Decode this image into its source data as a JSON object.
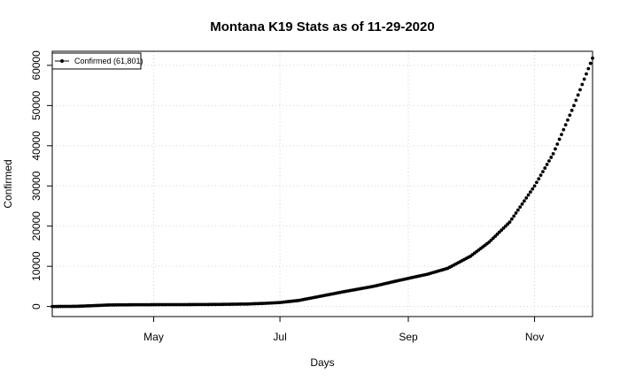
{
  "chart_data": {
    "type": "scatter",
    "title": "Montana K19 Stats as of 11-29-2020",
    "xlabel": "Days",
    "ylabel": "Confirmed",
    "x_start": "2020-03-13",
    "x_end": "2020-11-29",
    "xlim": [
      "2020-03-13",
      "2020-11-29"
    ],
    "ylim": [
      -2500,
      63500
    ],
    "x_ticks": [
      {
        "date": "2020-05-01",
        "label": "May"
      },
      {
        "date": "2020-07-01",
        "label": "Jul"
      },
      {
        "date": "2020-09-01",
        "label": "Sep"
      },
      {
        "date": "2020-11-01",
        "label": "Nov"
      }
    ],
    "y_ticks": [
      0,
      10000,
      20000,
      30000,
      40000,
      50000,
      60000
    ],
    "grid": true,
    "legend": {
      "position": "top-left",
      "entries": [
        "Confirmed (61,801)"
      ]
    },
    "series": [
      {
        "name": "Confirmed (61,801)",
        "marker": "filled-circle",
        "color": "#000000",
        "points": [
          [
            "2020-03-13",
            0
          ],
          [
            "2020-03-25",
            50
          ],
          [
            "2020-04-01",
            200
          ],
          [
            "2020-04-10",
            390
          ],
          [
            "2020-04-20",
            430
          ],
          [
            "2020-05-01",
            455
          ],
          [
            "2020-05-15",
            470
          ],
          [
            "2020-06-01",
            520
          ],
          [
            "2020-06-15",
            620
          ],
          [
            "2020-06-25",
            820
          ],
          [
            "2020-07-01",
            1000
          ],
          [
            "2020-07-10",
            1500
          ],
          [
            "2020-07-20",
            2500
          ],
          [
            "2020-08-01",
            3700
          ],
          [
            "2020-08-15",
            5000
          ],
          [
            "2020-08-25",
            6200
          ],
          [
            "2020-09-01",
            7000
          ],
          [
            "2020-09-10",
            8000
          ],
          [
            "2020-09-20",
            9500
          ],
          [
            "2020-10-01",
            12500
          ],
          [
            "2020-10-10",
            16000
          ],
          [
            "2020-10-20",
            21000
          ],
          [
            "2020-11-01",
            30000
          ],
          [
            "2020-11-10",
            38000
          ],
          [
            "2020-11-20",
            50000
          ],
          [
            "2020-11-29",
            61801
          ]
        ]
      }
    ]
  }
}
